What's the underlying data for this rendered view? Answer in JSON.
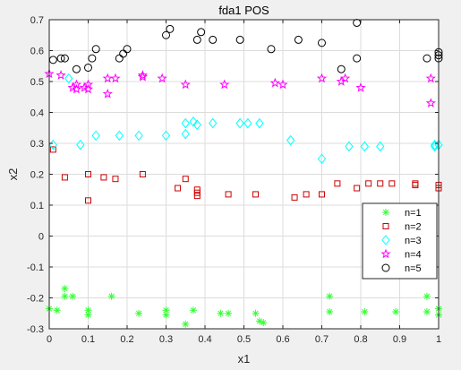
{
  "chart_data": {
    "type": "scatter",
    "title": "fda1 POS",
    "xlabel": "x1",
    "ylabel": "x2",
    "xlim": [
      0,
      1
    ],
    "ylim": [
      -0.3,
      0.7
    ],
    "xticks": [
      "0",
      "0.1",
      "0.2",
      "0.3",
      "0.4",
      "0.5",
      "0.6",
      "0.7",
      "0.8",
      "0.9",
      "1"
    ],
    "yticks": [
      "-0.3",
      "-0.2",
      "-0.1",
      "0",
      "0.1",
      "0.2",
      "0.3",
      "0.4",
      "0.5",
      "0.6",
      "0.7"
    ],
    "grid": true,
    "legend_position": "lower-right",
    "series": [
      {
        "name": "n=1",
        "marker": "asterisk",
        "color": "#33ff33",
        "points": [
          [
            0,
            -0.235
          ],
          [
            0.02,
            -0.24
          ],
          [
            0.04,
            -0.17
          ],
          [
            0.04,
            -0.195
          ],
          [
            0.06,
            -0.195
          ],
          [
            0.1,
            -0.24
          ],
          [
            0.1,
            -0.255
          ],
          [
            0.16,
            -0.195
          ],
          [
            0.23,
            -0.25
          ],
          [
            0.3,
            -0.24
          ],
          [
            0.3,
            -0.255
          ],
          [
            0.35,
            -0.285
          ],
          [
            0.37,
            -0.24
          ],
          [
            0.44,
            -0.25
          ],
          [
            0.46,
            -0.25
          ],
          [
            0.53,
            -0.25
          ],
          [
            0.54,
            -0.275
          ],
          [
            0.55,
            -0.28
          ],
          [
            0.72,
            -0.195
          ],
          [
            0.72,
            -0.245
          ],
          [
            0.81,
            -0.245
          ],
          [
            0.89,
            -0.245
          ],
          [
            0.97,
            -0.195
          ],
          [
            0.97,
            -0.245
          ],
          [
            1.0,
            -0.235
          ],
          [
            1.0,
            -0.255
          ]
        ]
      },
      {
        "name": "n=2",
        "marker": "square",
        "color": "#cc0000",
        "points": [
          [
            0.01,
            0.28
          ],
          [
            0.04,
            0.19
          ],
          [
            0.1,
            0.2
          ],
          [
            0.1,
            0.115
          ],
          [
            0.14,
            0.19
          ],
          [
            0.17,
            0.185
          ],
          [
            0.24,
            0.2
          ],
          [
            0.33,
            0.155
          ],
          [
            0.35,
            0.185
          ],
          [
            0.38,
            0.15
          ],
          [
            0.38,
            0.14
          ],
          [
            0.38,
            0.13
          ],
          [
            0.46,
            0.135
          ],
          [
            0.53,
            0.135
          ],
          [
            0.63,
            0.125
          ],
          [
            0.66,
            0.135
          ],
          [
            0.7,
            0.135
          ],
          [
            0.74,
            0.17
          ],
          [
            0.79,
            0.155
          ],
          [
            0.82,
            0.17
          ],
          [
            0.85,
            0.17
          ],
          [
            0.88,
            0.17
          ],
          [
            0.94,
            0.17
          ],
          [
            0.94,
            0.165
          ],
          [
            1.0,
            0.165
          ],
          [
            1.0,
            0.155
          ],
          [
            1.0,
            0.155
          ]
        ]
      },
      {
        "name": "n=3",
        "marker": "diamond",
        "color": "#00ffff",
        "points": [
          [
            0.01,
            0.295
          ],
          [
            0.05,
            0.51
          ],
          [
            0.08,
            0.295
          ],
          [
            0.12,
            0.325
          ],
          [
            0.18,
            0.325
          ],
          [
            0.23,
            0.325
          ],
          [
            0.3,
            0.325
          ],
          [
            0.35,
            0.33
          ],
          [
            0.35,
            0.365
          ],
          [
            0.37,
            0.37
          ],
          [
            0.38,
            0.36
          ],
          [
            0.42,
            0.365
          ],
          [
            0.49,
            0.365
          ],
          [
            0.51,
            0.365
          ],
          [
            0.54,
            0.365
          ],
          [
            0.62,
            0.31
          ],
          [
            0.7,
            0.25
          ],
          [
            0.77,
            0.29
          ],
          [
            0.81,
            0.29
          ],
          [
            0.85,
            0.29
          ],
          [
            0.99,
            0.29
          ],
          [
            0.99,
            0.295
          ],
          [
            1.0,
            0.295
          ]
        ]
      },
      {
        "name": "n=4",
        "marker": "pentagram",
        "color": "#ff00ff",
        "points": [
          [
            0.0,
            0.525
          ],
          [
            0.03,
            0.52
          ],
          [
            0.06,
            0.48
          ],
          [
            0.07,
            0.475
          ],
          [
            0.07,
            0.49
          ],
          [
            0.09,
            0.48
          ],
          [
            0.1,
            0.475
          ],
          [
            0.1,
            0.49
          ],
          [
            0.15,
            0.46
          ],
          [
            0.15,
            0.51
          ],
          [
            0.17,
            0.51
          ],
          [
            0.24,
            0.515
          ],
          [
            0.24,
            0.52
          ],
          [
            0.29,
            0.51
          ],
          [
            0.35,
            0.49
          ],
          [
            0.45,
            0.49
          ],
          [
            0.58,
            0.495
          ],
          [
            0.6,
            0.49
          ],
          [
            0.7,
            0.51
          ],
          [
            0.75,
            0.5
          ],
          [
            0.76,
            0.51
          ],
          [
            0.8,
            0.48
          ],
          [
            0.98,
            0.43
          ],
          [
            0.98,
            0.51
          ]
        ]
      },
      {
        "name": "n=5",
        "marker": "circle",
        "color": "#000000",
        "points": [
          [
            0.01,
            0.57
          ],
          [
            0.03,
            0.575
          ],
          [
            0.04,
            0.575
          ],
          [
            0.07,
            0.54
          ],
          [
            0.1,
            0.545
          ],
          [
            0.11,
            0.575
          ],
          [
            0.12,
            0.605
          ],
          [
            0.18,
            0.575
          ],
          [
            0.19,
            0.59
          ],
          [
            0.2,
            0.605
          ],
          [
            0.3,
            0.65
          ],
          [
            0.31,
            0.67
          ],
          [
            0.38,
            0.635
          ],
          [
            0.39,
            0.66
          ],
          [
            0.42,
            0.635
          ],
          [
            0.49,
            0.635
          ],
          [
            0.57,
            0.605
          ],
          [
            0.64,
            0.635
          ],
          [
            0.7,
            0.625
          ],
          [
            0.75,
            0.54
          ],
          [
            0.79,
            0.575
          ],
          [
            0.79,
            0.69
          ],
          [
            0.97,
            0.575
          ],
          [
            1.0,
            0.575
          ],
          [
            1.0,
            0.585
          ],
          [
            1.0,
            0.595
          ]
        ]
      }
    ]
  }
}
